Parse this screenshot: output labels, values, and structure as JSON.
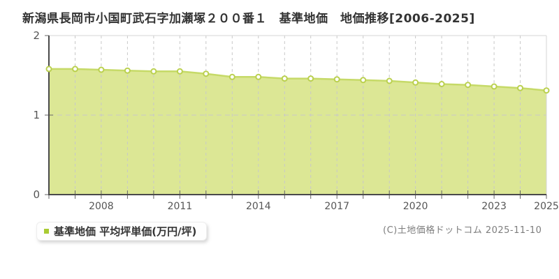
{
  "title": "新潟県長岡市小国町武石字加瀬塚２００番１　基準地価　地価推移[2006-2025]",
  "legend": {
    "label": "基準地価 平均坪単価(万円/坪)"
  },
  "footer": {
    "copyright": "(C)土地価格ドットコム 2025-11-10"
  },
  "colors": {
    "area_fill": "#dce795",
    "line": "#c6da68",
    "point_fill": "#ffffff",
    "point_stroke": "#bad04e",
    "legend_swatch": "#a9cb32",
    "axis": "#4a4a4a",
    "plot_border": "#d6d6d6",
    "grid": "#c8c8c8",
    "tick_text": "#555555"
  },
  "chart_data": {
    "type": "area",
    "title": "新潟県長岡市小国町武石字加瀬塚２００番１　基準地価　地価推移[2006-2025]",
    "series_name": "基準地価 平均坪単価(万円/坪)",
    "x": [
      2006,
      2007,
      2008,
      2009,
      2010,
      2011,
      2012,
      2013,
      2014,
      2015,
      2016,
      2017,
      2018,
      2019,
      2020,
      2021,
      2022,
      2023,
      2024,
      2025
    ],
    "values": [
      1.58,
      1.58,
      1.57,
      1.56,
      1.55,
      1.55,
      1.52,
      1.48,
      1.48,
      1.46,
      1.46,
      1.45,
      1.44,
      1.43,
      1.41,
      1.39,
      1.38,
      1.36,
      1.34,
      1.31
    ],
    "xlabel": "",
    "ylabel": "",
    "ylim": [
      0,
      2
    ],
    "yticks": [
      0,
      1,
      2
    ],
    "xtick_labels": [
      "2008",
      "2011",
      "2014",
      "2017",
      "2020",
      "2023",
      "2025"
    ],
    "xtick_label_years": [
      2008,
      2011,
      2014,
      2017,
      2020,
      2023,
      2025
    ],
    "grid": "vertical dashed per year; horizontal dashed at 1",
    "legend_position": "bottom-left"
  }
}
